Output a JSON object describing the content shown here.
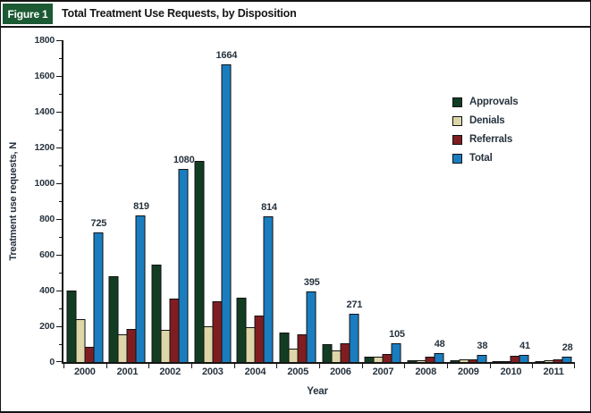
{
  "figure": {
    "badge": "Figure 1",
    "title": "Total Treatment Use Requests, by Disposition"
  },
  "chart_data": {
    "type": "bar",
    "title": "Total Treatment Use Requests, by Disposition",
    "xlabel": "Year",
    "ylabel": "Treatment use requests, N",
    "categories": [
      "2000",
      "2001",
      "2002",
      "2003",
      "2004",
      "2005",
      "2006",
      "2007",
      "2008",
      "2009",
      "2010",
      "2011"
    ],
    "series": [
      {
        "name": "Approvals",
        "color": "#123d23",
        "values": [
          400,
          480,
          545,
          1125,
          360,
          165,
          100,
          30,
          8,
          8,
          3,
          3
        ]
      },
      {
        "name": "Denials",
        "color": "#ddd6a8",
        "values": [
          240,
          155,
          180,
          200,
          195,
          75,
          66,
          30,
          10,
          13,
          3,
          12
        ]
      },
      {
        "name": "Referrals",
        "color": "#801d21",
        "values": [
          85,
          184,
          355,
          339,
          259,
          155,
          105,
          45,
          30,
          17,
          35,
          13
        ]
      },
      {
        "name": "Total",
        "color": "#1a7dc0",
        "values": [
          725,
          819,
          1080,
          1664,
          814,
          395,
          271,
          105,
          48,
          38,
          41,
          28
        ]
      }
    ],
    "bar_labels": [
      "725",
      "819",
      "1080",
      "1664",
      "814",
      "395",
      "271",
      "105",
      "48",
      "38",
      "41",
      "28"
    ],
    "bar_labels_on_series": "Total",
    "ylim": [
      0,
      1800
    ],
    "ytick_step": 200,
    "ytick_minor_step": 100,
    "ytick_labels": [
      "0",
      "200",
      "400",
      "600",
      "800",
      "1000",
      "1200",
      "1400",
      "1600",
      "1800"
    ],
    "grid": false,
    "legend_position": "right-inside",
    "legend_entries": [
      "Approvals",
      "Denials",
      "Referrals",
      "Total"
    ]
  },
  "colors": {
    "figure_badge_bg": "#1b5a33",
    "figure_badge_text": "#ffffff",
    "axis": "#151515",
    "chart_text": "#27333e",
    "title_text": "#161616"
  }
}
